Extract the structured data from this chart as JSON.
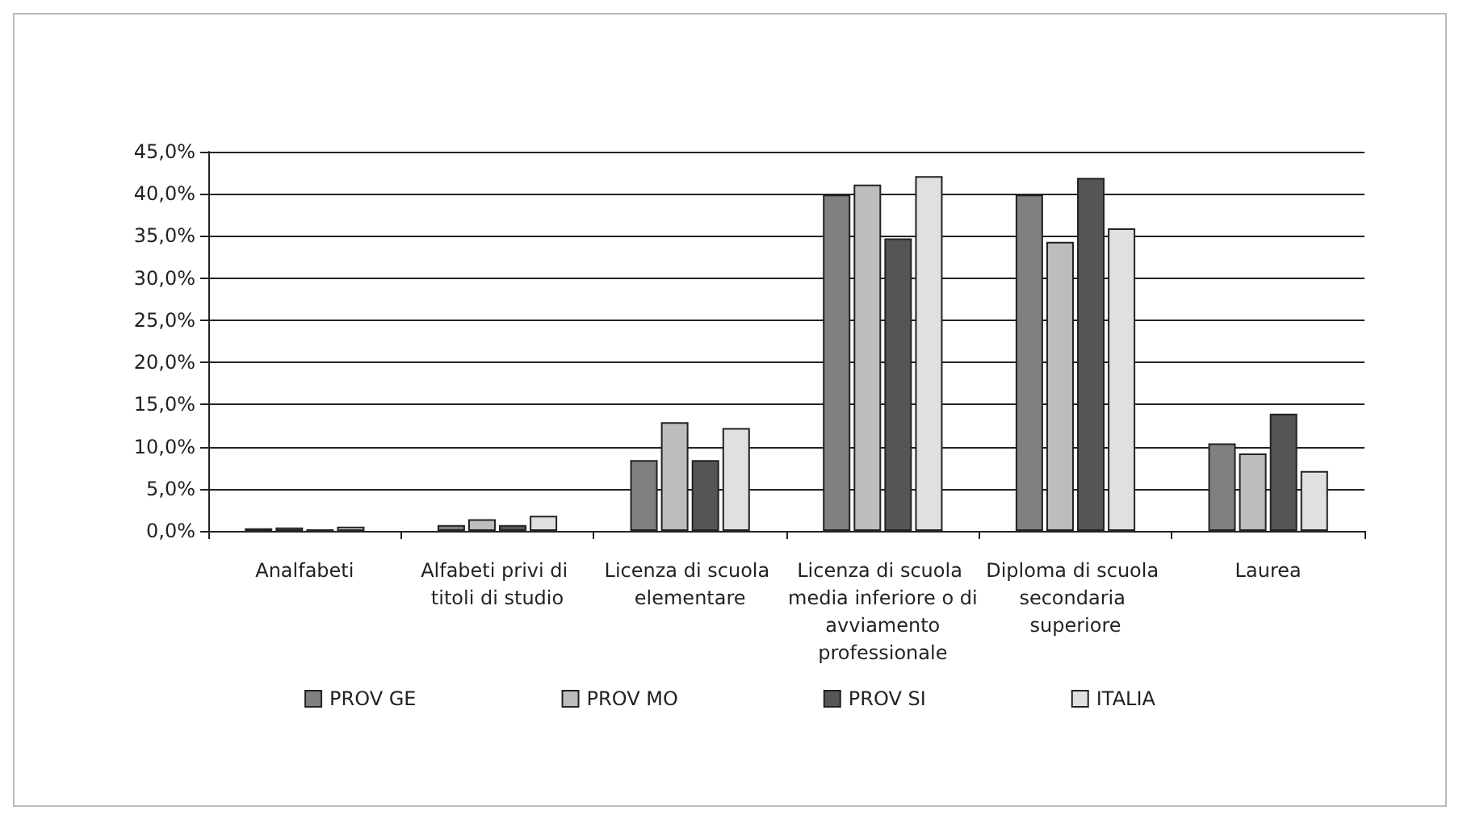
{
  "chart_data": {
    "type": "bar",
    "categories": [
      "Analfabeti",
      "Alfabeti privi di titoli di studio",
      "Licenza di scuola elementare",
      "Licenza di scuola media inferiore o di avviamento professionale",
      "Diploma di scuola secondaria superiore",
      "Laurea"
    ],
    "series": [
      {
        "name": "PROV GE",
        "color": "#808083",
        "values": [
          0.3,
          0.7,
          8.4,
          39.9,
          39.9,
          10.4
        ]
      },
      {
        "name": "PROV MO",
        "color": "#bdbdc0",
        "values": [
          0.4,
          1.4,
          12.9,
          41.1,
          34.3,
          9.2
        ]
      },
      {
        "name": "PROV SI",
        "color": "#555558",
        "values": [
          0.2,
          0.7,
          8.4,
          34.7,
          41.9,
          13.9
        ]
      },
      {
        "name": "ITALIA",
        "color": "#e0e0e2",
        "values": [
          0.5,
          1.8,
          12.2,
          42.1,
          35.9,
          7.1
        ]
      }
    ],
    "ylim": [
      0,
      45
    ],
    "yticks": [
      {
        "value": 0,
        "label": "0,0%"
      },
      {
        "value": 5,
        "label": "5,0%"
      },
      {
        "value": 10,
        "label": "10,0%"
      },
      {
        "value": 15,
        "label": "15,0%"
      },
      {
        "value": 20,
        "label": "20,0%"
      },
      {
        "value": 25,
        "label": "25,0%"
      },
      {
        "value": 30,
        "label": "30,0%"
      },
      {
        "value": 35,
        "label": "35,0%"
      },
      {
        "value": 40,
        "label": "40,0%"
      },
      {
        "value": 45,
        "label": "45,0%"
      }
    ],
    "grid": "y",
    "legend": "bottom"
  }
}
